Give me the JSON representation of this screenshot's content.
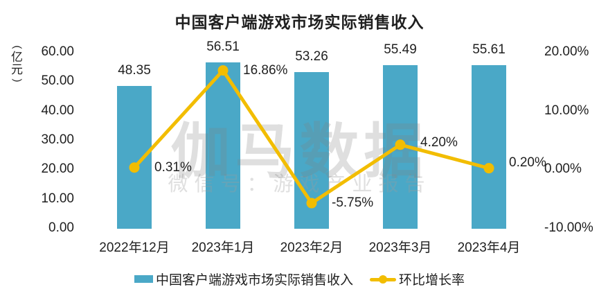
{
  "chart_data": {
    "type": "bar",
    "subtype": "combo-bar-line",
    "title": "中国客户端游戏市场实际销售收入",
    "categories": [
      "2022年12月",
      "2023年1月",
      "2023年2月",
      "2023年3月",
      "2023年4月"
    ],
    "series": [
      {
        "name": "中国客户端游戏市场实际销售收入",
        "chart_type": "bar",
        "axis": "left",
        "color": "#4AA8C7",
        "values": [
          48.35,
          56.51,
          53.26,
          55.49,
          55.61
        ],
        "data_labels": [
          "48.35",
          "56.51",
          "53.26",
          "55.49",
          "55.61"
        ]
      },
      {
        "name": "环比增长率",
        "chart_type": "line",
        "axis": "right",
        "color": "#F2BD00",
        "values": [
          0.31,
          16.86,
          -5.75,
          4.2,
          0.2
        ],
        "data_labels": [
          "0.31%",
          "16.86%",
          "-5.75%",
          "4.20%",
          "0.20%"
        ]
      }
    ],
    "left_axis": {
      "unit": "(亿元)",
      "min": 0,
      "max": 60,
      "ticks": [
        {
          "value": 60,
          "label": "60.00"
        },
        {
          "value": 50,
          "label": "50.00"
        },
        {
          "value": 40,
          "label": "40.00"
        },
        {
          "value": 30,
          "label": "30.00"
        },
        {
          "value": 20,
          "label": "20.00"
        },
        {
          "value": 10,
          "label": "10.00"
        },
        {
          "value": 0,
          "label": "0.00"
        }
      ]
    },
    "right_axis": {
      "min": -10,
      "max": 20,
      "ticks": [
        {
          "value": 20,
          "label": "20.00%"
        },
        {
          "value": 10,
          "label": "10.00%"
        },
        {
          "value": 0,
          "label": "0.00%"
        },
        {
          "value": -10,
          "label": "-10.00%"
        }
      ]
    },
    "grid": false,
    "legend_position": "bottom"
  },
  "legend": {
    "bar_label": "中国客户端游戏市场实际销售收入",
    "line_label": "环比增长率"
  },
  "watermark": {
    "line1": "伽马数据",
    "line2": "微信号：游戏产业报告"
  },
  "colors": {
    "bar": "#4AA8C7",
    "line": "#F2BD00",
    "text": "#1F1F1F",
    "watermark": "#ADADAD",
    "background": "#FFFFFF"
  }
}
